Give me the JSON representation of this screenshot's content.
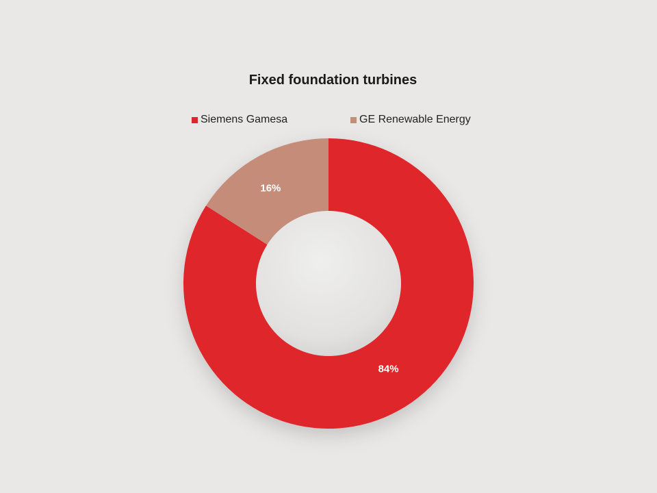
{
  "chart_data": {
    "type": "pie",
    "title": "Fixed foundation turbines",
    "donut": true,
    "legend_position": "top",
    "slices": [
      {
        "label": "Siemens Gamesa",
        "value": 84,
        "display": "84%",
        "color": "#df2629"
      },
      {
        "label": "GE Renewable Energy",
        "value": 16,
        "display": "16%",
        "color": "#c58c7a"
      }
    ]
  }
}
